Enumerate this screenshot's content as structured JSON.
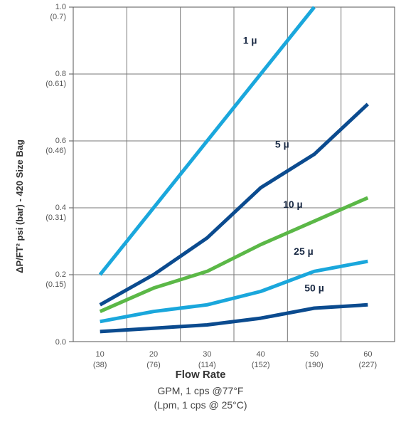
{
  "chart_data": {
    "type": "line",
    "title": "",
    "ylabel": "ΔP/FT² psi (bar) - 420 Size Bag",
    "xlabel": "Flow Rate",
    "xlabel_sub": [
      "GPM, 1 cps @77°F",
      "(Lpm, 1 cps @ 25°C)"
    ],
    "x": [
      10,
      20,
      30,
      40,
      50,
      60
    ],
    "x_tick_labels": [
      [
        "10",
        "(38)"
      ],
      [
        "20",
        "(76)"
      ],
      [
        "30",
        "(114)"
      ],
      [
        "40",
        "(152)"
      ],
      [
        "50",
        "(190)"
      ],
      [
        "60",
        "(227)"
      ]
    ],
    "ylim": [
      0,
      1.0
    ],
    "y_ticks": [
      0,
      0.2,
      0.4,
      0.6,
      0.8,
      1.0
    ],
    "y_tick_labels": [
      [
        "0.0",
        ""
      ],
      [
        "0.2",
        "(0.15)"
      ],
      [
        "0.4",
        "(0.31)"
      ],
      [
        "0.6",
        "(0.46)"
      ],
      [
        "0.8",
        "(0.61)"
      ],
      [
        "1.0",
        "(0.7)"
      ]
    ],
    "grid": true,
    "series": [
      {
        "name": "1 µ",
        "color": "#1aa7dc",
        "x": [
          10,
          50
        ],
        "values": [
          0.2,
          1.0
        ]
      },
      {
        "name": "5 µ",
        "color": "#0b4b8f",
        "x": [
          10,
          20,
          30,
          40,
          50,
          60
        ],
        "values": [
          0.11,
          0.2,
          0.31,
          0.46,
          0.56,
          0.71
        ]
      },
      {
        "name": "10 µ",
        "color": "#5bb847",
        "x": [
          10,
          20,
          30,
          40,
          50,
          60
        ],
        "values": [
          0.09,
          0.16,
          0.21,
          0.29,
          0.36,
          0.43
        ]
      },
      {
        "name": "25 µ",
        "color": "#1aa7dc",
        "x": [
          10,
          20,
          30,
          40,
          50,
          60
        ],
        "values": [
          0.06,
          0.09,
          0.11,
          0.15,
          0.21,
          0.24
        ]
      },
      {
        "name": "50 µ",
        "color": "#0b4b8f",
        "x": [
          10,
          20,
          30,
          40,
          50,
          60
        ],
        "values": [
          0.03,
          0.04,
          0.05,
          0.07,
          0.1,
          0.11
        ]
      }
    ]
  }
}
